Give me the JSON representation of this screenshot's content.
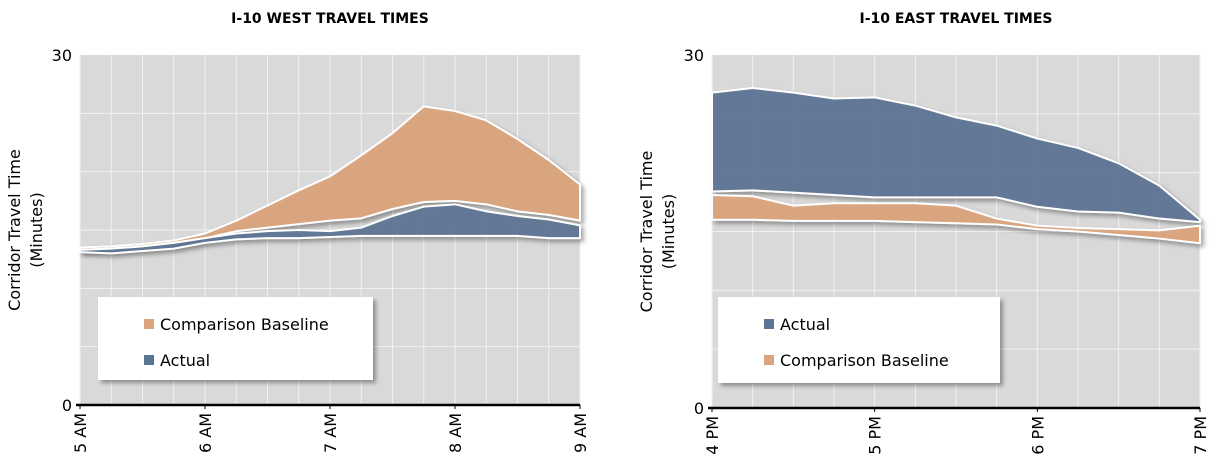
{
  "chart_data": [
    {
      "type": "area-range",
      "title": "I-10 WEST TRAVEL TIMES",
      "y_label": [
        "Corridor Travel Time",
        "(Minutes)"
      ],
      "x": [
        5,
        5.25,
        5.5,
        5.75,
        6,
        6.25,
        6.5,
        6.75,
        7,
        7.25,
        7.5,
        7.75,
        8,
        8.25,
        8.5,
        8.75,
        9
      ],
      "xlim": [
        5,
        9
      ],
      "xticks": [
        {
          "value": 5,
          "label": "5 AM"
        },
        {
          "value": 6,
          "label": "6 AM"
        },
        {
          "value": 7,
          "label": "7 AM"
        },
        {
          "value": 8,
          "label": "8 AM"
        },
        {
          "value": 9,
          "label": "9 AM"
        }
      ],
      "ylim": [
        0,
        30
      ],
      "yticks": [
        0,
        30
      ],
      "ygrid": [
        5,
        10,
        15,
        20,
        25
      ],
      "grid": true,
      "legend": "lower left",
      "series": [
        {
          "name": "Comparison Baseline",
          "color": "#dba47c",
          "high": [
            13.5,
            13.6,
            13.8,
            14.1,
            14.7,
            15.8,
            17.1,
            18.4,
            19.6,
            21.4,
            23.3,
            25.6,
            25.2,
            24.4,
            22.8,
            21.0,
            18.9
          ],
          "low": [
            13.3,
            13.4,
            13.6,
            13.9,
            14.3,
            14.9,
            15.2,
            15.5,
            15.8,
            16.0,
            16.8,
            17.4,
            17.5,
            17.2,
            16.6,
            16.3,
            15.8
          ]
        },
        {
          "name": "Actual",
          "color": "#5c7494",
          "high": [
            13.3,
            13.4,
            13.6,
            13.9,
            14.3,
            14.7,
            14.9,
            15.0,
            14.9,
            15.2,
            16.2,
            17.0,
            17.2,
            16.6,
            16.2,
            15.9,
            15.4
          ],
          "low": [
            13.1,
            13.0,
            13.2,
            13.4,
            13.9,
            14.2,
            14.3,
            14.3,
            14.4,
            14.5,
            14.5,
            14.5,
            14.5,
            14.5,
            14.5,
            14.3,
            14.3
          ]
        }
      ]
    },
    {
      "type": "area-range",
      "title": "I-10 EAST TRAVEL TIMES",
      "y_label": [
        "Corridor Travel Time",
        "(Minutes)"
      ],
      "x": [
        16,
        16.25,
        16.5,
        16.75,
        17,
        17.25,
        17.5,
        17.75,
        18,
        18.25,
        18.5,
        18.75,
        19
      ],
      "xlim": [
        16,
        19
      ],
      "xticks": [
        {
          "value": 16,
          "label": "4 PM"
        },
        {
          "value": 17,
          "label": "5 PM"
        },
        {
          "value": 18,
          "label": "6 PM"
        },
        {
          "value": 19,
          "label": "7 PM"
        }
      ],
      "ylim": [
        0,
        30
      ],
      "yticks": [
        0,
        30
      ],
      "ygrid": [
        5,
        10,
        15,
        20,
        25
      ],
      "grid": true,
      "legend": "lower left",
      "series": [
        {
          "name": "Actual",
          "color": "#5c7494",
          "high": [
            26.8,
            27.2,
            26.8,
            26.3,
            26.4,
            25.7,
            24.7,
            24.0,
            22.9,
            22.1,
            20.8,
            18.9,
            16.0
          ],
          "low": [
            18.4,
            18.5,
            18.3,
            18.1,
            17.9,
            17.9,
            17.9,
            17.9,
            17.1,
            16.7,
            16.6,
            16.1,
            15.8
          ]
        },
        {
          "name": "Comparison Baseline",
          "color": "#dba47c",
          "high": [
            18.1,
            18.0,
            17.2,
            17.4,
            17.4,
            17.4,
            17.2,
            16.1,
            15.5,
            15.3,
            15.2,
            15.1,
            15.5
          ],
          "low": [
            16.0,
            16.0,
            15.9,
            15.9,
            15.9,
            15.8,
            15.7,
            15.6,
            15.2,
            15.0,
            14.7,
            14.4,
            14.0
          ]
        }
      ]
    }
  ]
}
